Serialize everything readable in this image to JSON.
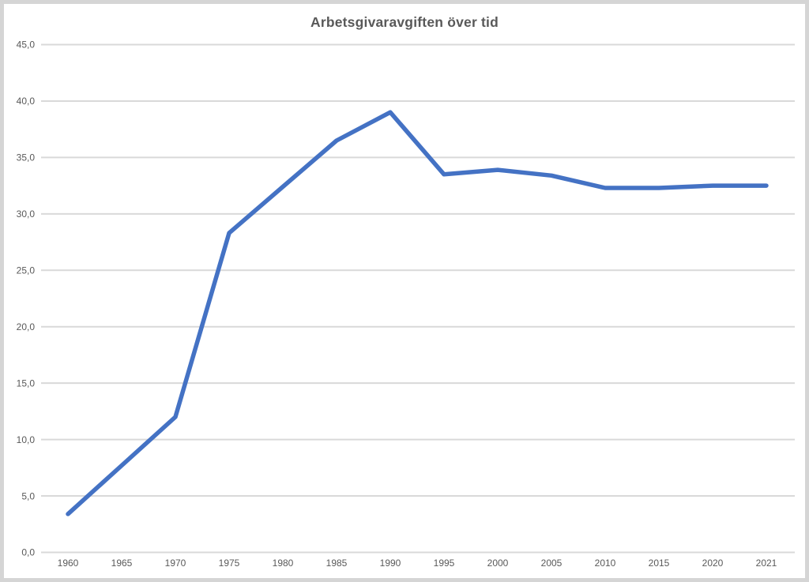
{
  "frame": {
    "background": "#d5d5d5",
    "chart_background": "#ffffff"
  },
  "chart_data": {
    "type": "line",
    "title": "Arbetsgivaravgiften över tid",
    "categories": [
      "1960",
      "1965",
      "1970",
      "1975",
      "1980",
      "1985",
      "1990",
      "1995",
      "2000",
      "2005",
      "2010",
      "2015",
      "2020",
      "2021"
    ],
    "series": [
      {
        "name": "Arbetsgivaravgift",
        "values": [
          3.4,
          7.7,
          12.0,
          28.3,
          32.4,
          36.5,
          39.0,
          33.5,
          33.9,
          33.4,
          32.3,
          32.3,
          32.5,
          32.5
        ]
      }
    ],
    "xlabel": "",
    "ylabel": "",
    "ylim": [
      0,
      45
    ],
    "y_tick_step": 5,
    "y_tick_values": [
      0,
      5,
      10,
      15,
      20,
      25,
      30,
      35,
      40,
      45
    ],
    "y_tick_labels": [
      "0,0",
      "5,0",
      "10,0",
      "15,0",
      "20,0",
      "25,0",
      "30,0",
      "35,0",
      "40,0",
      "45,0"
    ],
    "grid": true,
    "legend_position": "none",
    "line_color": "#4472C4",
    "gridline_color": "#D9D9D9",
    "label_color": "#595959",
    "title_color": "#595959"
  }
}
